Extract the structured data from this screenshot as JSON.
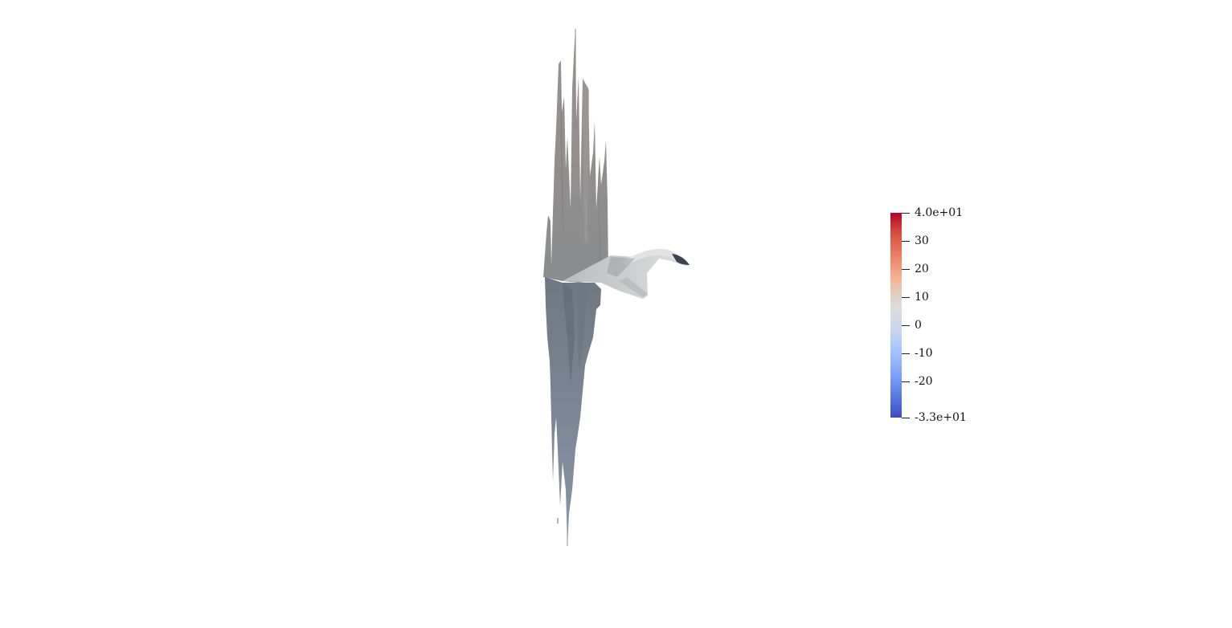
{
  "scene": {
    "background": "#ffffff",
    "object_tone_top": "#8c8a88",
    "object_tone_bottom": "#7d8896",
    "object_sheet": "#c8cacb",
    "object_dark_edge": "#3c4350"
  },
  "colorbar": {
    "colormap": "coolwarm",
    "min": -33,
    "max": 40,
    "ticks": [
      {
        "value": 40,
        "label": "4.0e+01"
      },
      {
        "value": 30,
        "label": "30"
      },
      {
        "value": 20,
        "label": "20"
      },
      {
        "value": 10,
        "label": "10"
      },
      {
        "value": 0,
        "label": "0"
      },
      {
        "value": -10,
        "label": "-10"
      },
      {
        "value": -20,
        "label": "-20"
      },
      {
        "value": -33,
        "label": "-3.3e+01"
      }
    ]
  }
}
